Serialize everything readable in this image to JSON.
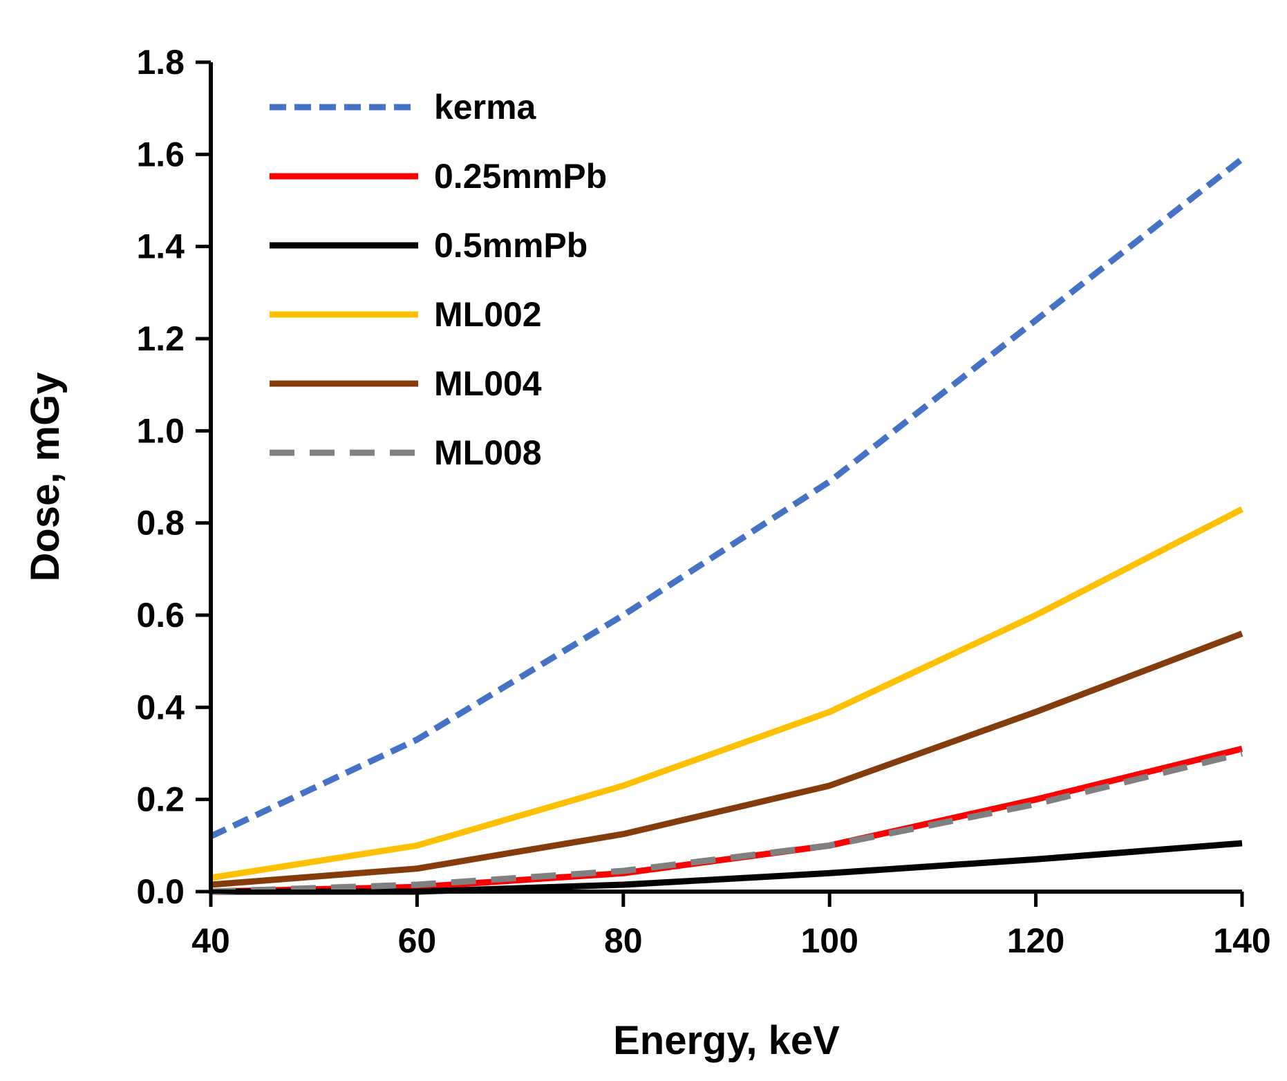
{
  "chart_data": {
    "type": "line",
    "title": "",
    "xlabel": "Energy, keV",
    "ylabel": "Dose, mGy",
    "xlim": [
      40,
      140
    ],
    "ylim": [
      0,
      1.8
    ],
    "xticks": [
      "40",
      "60",
      "80",
      "100",
      "120",
      "140"
    ],
    "yticks": [
      "0.0",
      "0.2",
      "0.4",
      "0.6",
      "0.8",
      "1.0",
      "1.2",
      "1.4",
      "1.6",
      "1.8"
    ],
    "grid": false,
    "legend_position": "top-left",
    "x": [
      40,
      60,
      80,
      100,
      120,
      140
    ],
    "series": [
      {
        "name": "kerma",
        "color": "#4472C4",
        "dash": "dashed",
        "values": [
          0.12,
          0.33,
          0.6,
          0.89,
          1.24,
          1.59
        ]
      },
      {
        "name": "0.25mmPb",
        "color": "#FF0000",
        "dash": "solid",
        "values": [
          0.0,
          0.01,
          0.04,
          0.1,
          0.2,
          0.31
        ]
      },
      {
        "name": "0.5mmPb",
        "color": "#000000",
        "dash": "solid",
        "values": [
          0.0,
          0.0,
          0.015,
          0.04,
          0.07,
          0.105
        ]
      },
      {
        "name": "ML002",
        "color": "#FFC000",
        "dash": "solid",
        "values": [
          0.03,
          0.1,
          0.23,
          0.39,
          0.6,
          0.83
        ]
      },
      {
        "name": "ML004",
        "color": "#843C0C",
        "dash": "solid",
        "values": [
          0.015,
          0.05,
          0.125,
          0.23,
          0.39,
          0.56
        ]
      },
      {
        "name": "ML008",
        "color": "#808080",
        "dash": "long-dash",
        "values": [
          0.0,
          0.015,
          0.045,
          0.1,
          0.19,
          0.3
        ]
      }
    ]
  }
}
